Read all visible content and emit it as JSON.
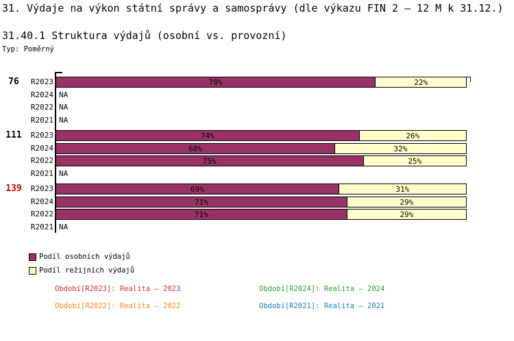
{
  "title": "31. Výdaje na výkon státní správy a samosprávy (dle výkazu FIN 2 – 12 M k 31.12.)",
  "subtitle": "31.40.1 Struktura výdajů (osobní vs. provozní)",
  "type_label": "Typ: Poměrný",
  "na_text": "NA",
  "colors": {
    "personal": "#993366",
    "overhead": "#ffffcc",
    "bar_border": "#000000",
    "group_label_default": "#000000",
    "group_label_highlight": "#cc0000",
    "period_2023": "#cc3333",
    "period_2024": "#339933",
    "period_2022": "#ee8822",
    "period_2021": "#1f7fb4"
  },
  "chart_data": {
    "type": "bar",
    "orientation": "horizontal",
    "stacked": true,
    "unit": "%",
    "x_range": [
      0,
      100
    ],
    "series_names": [
      "Podíl osobních výdajů",
      "Podíl režijních výdajů"
    ],
    "groups": [
      {
        "label": "76",
        "highlight": false,
        "rows": [
          {
            "period": "R2023",
            "osobni_pct": 78,
            "rezijni_pct": 22
          },
          {
            "period": "R2024",
            "osobni_pct": null,
            "rezijni_pct": null
          },
          {
            "period": "R2022",
            "osobni_pct": null,
            "rezijni_pct": null
          },
          {
            "period": "R2021",
            "osobni_pct": null,
            "rezijni_pct": null
          }
        ]
      },
      {
        "label": "111",
        "highlight": false,
        "rows": [
          {
            "period": "R2023",
            "osobni_pct": 74,
            "rezijni_pct": 26
          },
          {
            "period": "R2024",
            "osobni_pct": 68,
            "rezijni_pct": 32
          },
          {
            "period": "R2022",
            "osobni_pct": 75,
            "rezijni_pct": 25
          },
          {
            "period": "R2021",
            "osobni_pct": null,
            "rezijni_pct": null
          }
        ]
      },
      {
        "label": "139",
        "highlight": true,
        "rows": [
          {
            "period": "R2023",
            "osobni_pct": 69,
            "rezijni_pct": 31
          },
          {
            "period": "R2024",
            "osobni_pct": 71,
            "rezijni_pct": 29
          },
          {
            "period": "R2022",
            "osobni_pct": 71,
            "rezijni_pct": 29
          },
          {
            "period": "R2021",
            "osobni_pct": null,
            "rezijni_pct": null
          }
        ]
      }
    ]
  },
  "legend": [
    {
      "label": "Podíl osobních výdajů",
      "color_key": "personal"
    },
    {
      "label": "Podíl režijních výdajů",
      "color_key": "overhead"
    }
  ],
  "periods": [
    {
      "label": "Období[R2023]: Realita – 2023",
      "color_key": "period_2023"
    },
    {
      "label": "Období[R2024]: Realita – 2024",
      "color_key": "period_2024"
    },
    {
      "label": "Období[R2022]: Realita – 2022",
      "color_key": "period_2022"
    },
    {
      "label": "Období[R2021]: Realita – 2021",
      "color_key": "period_2021"
    }
  ]
}
